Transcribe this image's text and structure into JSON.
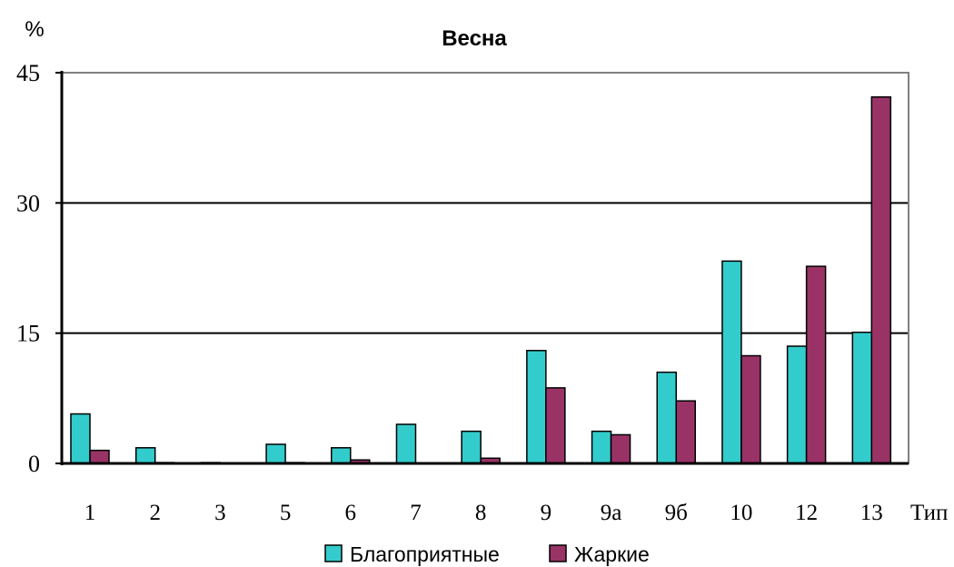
{
  "chart_data": {
    "type": "bar",
    "title": "Весна",
    "ylabel": "%",
    "xlabel": "Тип",
    "ylim": [
      0,
      45
    ],
    "yticks": [
      0,
      15,
      30,
      45
    ],
    "grid": true,
    "legend_position": "bottom",
    "categories": [
      "1",
      "2",
      "3",
      "5",
      "6",
      "7",
      "8",
      "9",
      "9а",
      "9б",
      "10",
      "12",
      "13"
    ],
    "series": [
      {
        "name": "Благоприятные",
        "color": "#33cccc",
        "values": [
          5.7,
          1.8,
          0.1,
          2.2,
          1.8,
          4.5,
          3.7,
          13.0,
          3.7,
          10.5,
          23.3,
          13.5,
          15.1
        ]
      },
      {
        "name": "Жаркие",
        "color": "#993366",
        "values": [
          1.5,
          0.1,
          0.0,
          0.1,
          0.4,
          0.0,
          0.6,
          8.7,
          3.3,
          7.2,
          12.4,
          22.7,
          42.2
        ]
      }
    ]
  }
}
